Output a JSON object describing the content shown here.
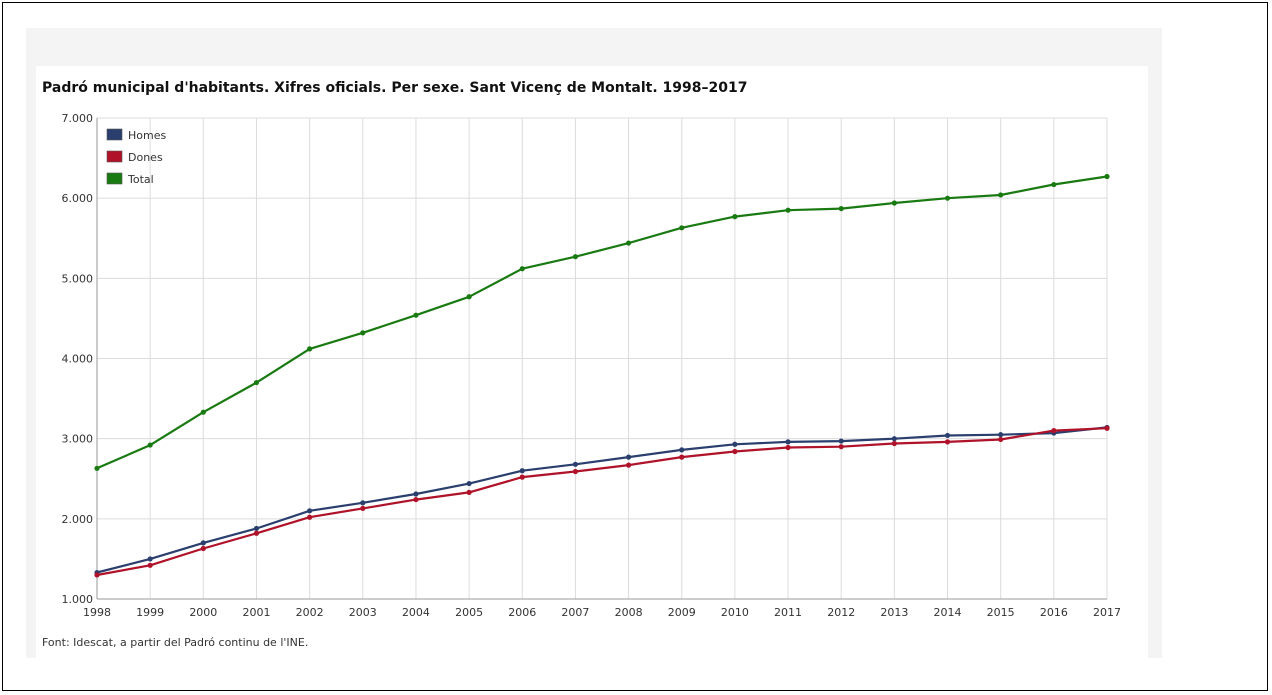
{
  "chart_data": {
    "type": "line",
    "title": "Padró municipal d'habitants. Xifres oficials. Per sexe. Sant Vicenç de Montalt. 1998–2017",
    "source": "Font: Idescat, a partir del Padró continu de l'INE.",
    "x": [
      "1998",
      "1999",
      "2000",
      "2001",
      "2002",
      "2003",
      "2004",
      "2005",
      "2006",
      "2007",
      "2008",
      "2009",
      "2010",
      "2011",
      "2012",
      "2013",
      "2014",
      "2015",
      "2016",
      "2017"
    ],
    "yticks": [
      "1.000",
      "2.000",
      "3.000",
      "4.000",
      "5.000",
      "6.000",
      "7.000"
    ],
    "ylim": [
      1000,
      7000
    ],
    "grid": true,
    "legend_position": "top-left",
    "series": [
      {
        "name": "Homes",
        "color": "#2b3f6e",
        "values": [
          1330,
          1500,
          1700,
          1880,
          2100,
          2200,
          2310,
          2440,
          2600,
          2680,
          2770,
          2860,
          2930,
          2960,
          2970,
          3000,
          3040,
          3050,
          3070,
          3140
        ]
      },
      {
        "name": "Dones",
        "color": "#b0122a",
        "values": [
          1300,
          1420,
          1630,
          1820,
          2020,
          2130,
          2240,
          2330,
          2520,
          2590,
          2670,
          2770,
          2840,
          2890,
          2900,
          2940,
          2960,
          2990,
          3100,
          3130
        ]
      },
      {
        "name": "Total",
        "color": "#1a7a12",
        "values": [
          2630,
          2920,
          3330,
          3700,
          4120,
          4320,
          4540,
          4770,
          5120,
          5270,
          5440,
          5630,
          5770,
          5850,
          5870,
          5940,
          6000,
          6040,
          6170,
          6270
        ]
      }
    ]
  }
}
